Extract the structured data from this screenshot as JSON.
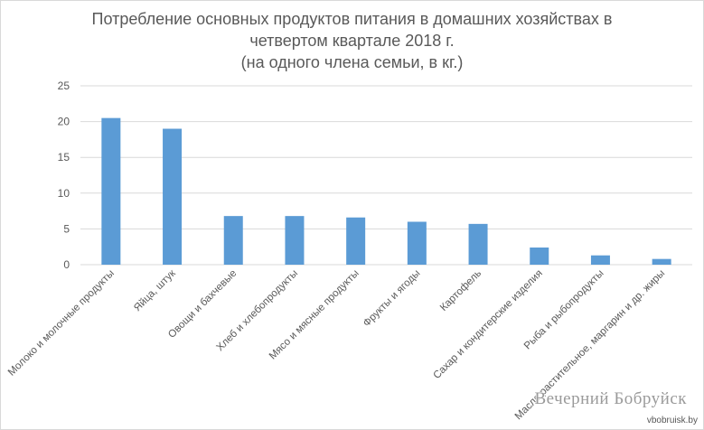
{
  "chart_data": {
    "type": "bar",
    "title_lines": [
      "Потребление основных продуктов питания в домашних хозяйствах в",
      "четвертом квартале 2018 г.",
      "(на одного члена семьи, в кг.)"
    ],
    "categories": [
      "Молоко и молочные продукты",
      "Яйца, штук",
      "Овощи и бахчевые",
      "Хлеб и хлебопродукты",
      "Мясо и мясные продукты",
      "Фрукты и ягоды",
      "Картофель",
      "Сахар и кондитерские изделия",
      "Рыба и рыбопродукты",
      "Масло растительное, маргарин и др. жиры"
    ],
    "values": [
      20.5,
      19.0,
      6.8,
      6.8,
      6.6,
      6.0,
      5.7,
      2.4,
      1.3,
      0.8
    ],
    "ylim": [
      0,
      25
    ],
    "yticks": [
      "0",
      "5",
      "10",
      "15",
      "20",
      "25"
    ],
    "grid": true,
    "bar_color": "#5b9bd5",
    "grid_color": "#d9d9d9"
  },
  "watermark": {
    "name": "Вечерний Бобруйск",
    "url": "vbobruisk.by"
  }
}
